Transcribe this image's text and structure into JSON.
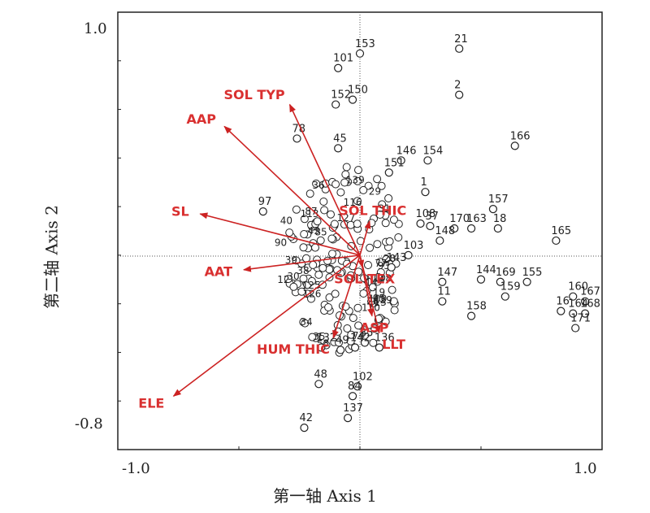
{
  "chart_data": {
    "type": "scatter",
    "title": "",
    "xlabel": "第一轴 Axis 1",
    "ylabel": "第二轴 Axis 2",
    "xlim": [
      -1.0,
      1.0
    ],
    "ylim": [
      -0.8,
      1.0
    ],
    "x_tick_labels": [
      "-1.0",
      "1.0"
    ],
    "y_tick_labels": [
      "1.0",
      "-0.8"
    ],
    "origin_lines": "dotted",
    "grid": false,
    "colors": {
      "points": "#222222",
      "vectors": "#cc2222",
      "labels": "#d93030"
    },
    "vectors": [
      {
        "name": "AAP",
        "x": -0.56,
        "y": 0.53
      },
      {
        "name": "SOL TYP",
        "x": -0.29,
        "y": 0.62
      },
      {
        "name": "SL",
        "x": -0.66,
        "y": 0.17
      },
      {
        "name": "SOL THIC",
        "x": 0.04,
        "y": 0.14
      },
      {
        "name": "AAT",
        "x": -0.48,
        "y": -0.06
      },
      {
        "name": "SOL TEX",
        "x": 0.01,
        "y": -0.05
      },
      {
        "name": "ELE",
        "x": -0.77,
        "y": -0.58
      },
      {
        "name": "HUM THIC",
        "x": -0.11,
        "y": -0.34
      },
      {
        "name": "ASP",
        "x": 0.05,
        "y": -0.25
      },
      {
        "name": "LLT",
        "x": 0.08,
        "y": -0.32
      }
    ],
    "points": [
      {
        "id": "21",
        "x": 0.41,
        "y": 0.85
      },
      {
        "id": "153",
        "x": 0.0,
        "y": 0.83
      },
      {
        "id": "101",
        "x": -0.09,
        "y": 0.77
      },
      {
        "id": "150",
        "x": -0.03,
        "y": 0.64
      },
      {
        "id": "152",
        "x": -0.1,
        "y": 0.62
      },
      {
        "id": "2",
        "x": 0.41,
        "y": 0.66
      },
      {
        "id": "166",
        "x": 0.64,
        "y": 0.45
      },
      {
        "id": "78",
        "x": -0.26,
        "y": 0.48
      },
      {
        "id": "45",
        "x": -0.09,
        "y": 0.44
      },
      {
        "id": "146",
        "x": 0.17,
        "y": 0.39
      },
      {
        "id": "154",
        "x": 0.28,
        "y": 0.39
      },
      {
        "id": "151",
        "x": 0.12,
        "y": 0.34
      },
      {
        "id": "1",
        "x": 0.27,
        "y": 0.26
      },
      {
        "id": "97",
        "x": -0.4,
        "y": 0.18
      },
      {
        "id": "157",
        "x": 0.55,
        "y": 0.19
      },
      {
        "id": "170",
        "x": 0.39,
        "y": 0.11
      },
      {
        "id": "163",
        "x": 0.46,
        "y": 0.11
      },
      {
        "id": "18",
        "x": 0.57,
        "y": 0.11
      },
      {
        "id": "165",
        "x": 0.81,
        "y": 0.06
      },
      {
        "id": "108",
        "x": 0.25,
        "y": 0.13
      },
      {
        "id": "37",
        "x": 0.29,
        "y": 0.12
      },
      {
        "id": "148",
        "x": 0.33,
        "y": 0.06
      },
      {
        "id": "103",
        "x": 0.2,
        "y": 0.0
      },
      {
        "id": "143",
        "x": 0.13,
        "y": -0.05
      },
      {
        "id": "147",
        "x": 0.34,
        "y": -0.11
      },
      {
        "id": "144",
        "x": 0.5,
        "y": -0.1
      },
      {
        "id": "169",
        "x": 0.58,
        "y": -0.11
      },
      {
        "id": "155",
        "x": 0.69,
        "y": -0.11
      },
      {
        "id": "159",
        "x": 0.6,
        "y": -0.17
      },
      {
        "id": "11",
        "x": 0.34,
        "y": -0.19
      },
      {
        "id": "158",
        "x": 0.46,
        "y": -0.25
      },
      {
        "id": "160",
        "x": 0.88,
        "y": -0.17
      },
      {
        "id": "167",
        "x": 0.93,
        "y": -0.19
      },
      {
        "id": "16",
        "x": 0.83,
        "y": -0.23
      },
      {
        "id": "164",
        "x": 0.88,
        "y": -0.24
      },
      {
        "id": "168",
        "x": 0.93,
        "y": -0.24
      },
      {
        "id": "171",
        "x": 0.89,
        "y": -0.3
      },
      {
        "id": "136",
        "x": 0.08,
        "y": -0.38
      },
      {
        "id": "35",
        "x": 0.02,
        "y": -0.36
      },
      {
        "id": "142",
        "x": -0.02,
        "y": -0.38
      },
      {
        "id": "49",
        "x": -0.08,
        "y": -0.39
      },
      {
        "id": "132",
        "x": -0.16,
        "y": -0.38
      },
      {
        "id": "102",
        "x": -0.01,
        "y": -0.54
      },
      {
        "id": "48",
        "x": -0.17,
        "y": -0.53
      },
      {
        "id": "84",
        "x": -0.03,
        "y": -0.58
      },
      {
        "id": "137",
        "x": -0.05,
        "y": -0.67
      },
      {
        "id": "42",
        "x": -0.23,
        "y": -0.71
      }
    ],
    "cluster_labels": [
      "29",
      "40",
      "93",
      "85",
      "87",
      "58",
      "43",
      "36",
      "77",
      "26",
      "148",
      "39",
      "90",
      "19",
      "14",
      "110",
      "100",
      "95",
      "35",
      "30",
      "31",
      "34",
      "38",
      "116",
      "113",
      "12",
      "13",
      "125",
      "139",
      "74",
      "129",
      "127",
      "126",
      "28"
    ]
  }
}
